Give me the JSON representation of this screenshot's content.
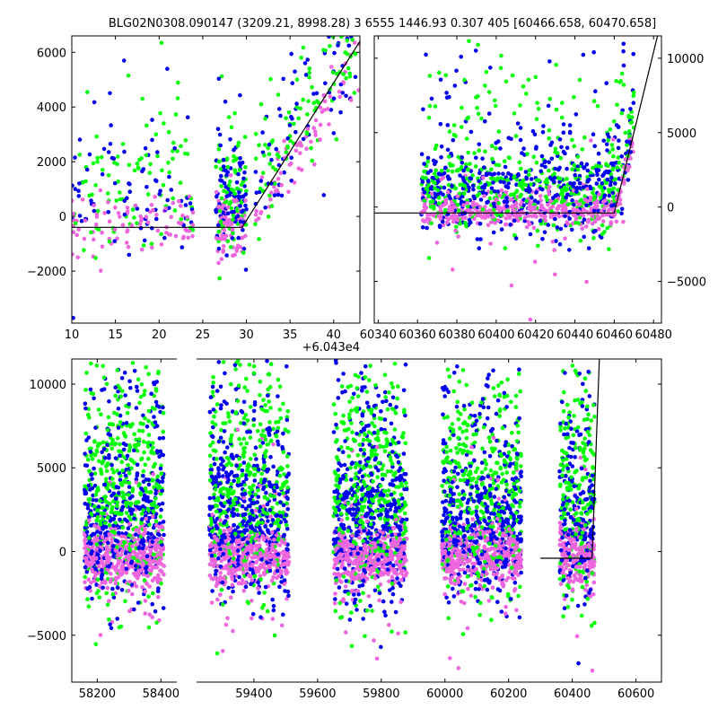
{
  "title": "BLG02N0308.090147 (3209.21, 8998.28)   3 6555 1446.93 0.307 405 [60466.658, 60470.658]",
  "colors": {
    "green": "#00ff00",
    "blue": "#0000ee",
    "magenta": "#ee66dd",
    "model": "#000000"
  },
  "chart_data": [
    {
      "type": "scatter",
      "panel": "top-left",
      "xlim": [
        10,
        43
      ],
      "ylim": [
        -3900,
        6600
      ],
      "xticks": [
        10,
        15,
        20,
        25,
        30,
        35,
        40
      ],
      "xtick_labels": [
        "10",
        "15",
        "20",
        "25",
        "30",
        "35",
        "40"
      ],
      "yticks": [
        -2000,
        0,
        2000,
        4000,
        6000
      ],
      "ytick_labels": [
        "−2000",
        "0",
        "2000",
        "4000",
        "6000"
      ],
      "y_axis_side": "left",
      "x_offset_label": "+6.043e4",
      "model_line": {
        "x": [
          10,
          29.5,
          43
        ],
        "y": [
          -400,
          -400,
          6400
        ]
      }
    },
    {
      "type": "scatter",
      "panel": "top-right",
      "xlim": [
        60338,
        60484
      ],
      "ylim": [
        -7800,
        11500
      ],
      "xticks": [
        60340,
        60360,
        60380,
        60400,
        60420,
        60440,
        60460,
        60480
      ],
      "xtick_labels": [
        "60340",
        "60360",
        "60380",
        "60400",
        "60420",
        "60440",
        "60460",
        "60480"
      ],
      "yticks": [
        -5000,
        0,
        5000,
        10000
      ],
      "ytick_labels": [
        "−5000",
        "0",
        "5000",
        "10000"
      ],
      "y_axis_side": "right",
      "model_line": {
        "x": [
          60338,
          60460,
          60482
        ],
        "y": [
          -400,
          -400,
          11500
        ]
      }
    },
    {
      "type": "scatter",
      "panel": "bottom",
      "xlim": [
        58120,
        60680
      ],
      "ylim": [
        -7800,
        11500
      ],
      "xticks": [
        58200,
        58400,
        59400,
        59600,
        59800,
        60000,
        60200,
        60400,
        60600
      ],
      "xtick_labels": [
        "58200",
        "58400",
        "59400",
        "59600",
        "59800",
        "60000",
        "60200",
        "60400",
        "60600"
      ],
      "yticks": [
        -5000,
        0,
        5000,
        10000
      ],
      "ytick_labels": [
        "−5000",
        "0",
        "5000",
        "10000"
      ],
      "y_axis_side": "both",
      "axis_break": [
        58450,
        59220
      ],
      "seasons": [
        [
          58160,
          58410
        ],
        [
          59260,
          59510
        ],
        [
          59650,
          59880
        ],
        [
          59990,
          60240
        ],
        [
          60360,
          60470
        ]
      ],
      "model_line": {
        "x": [
          60300,
          60462,
          60485
        ],
        "y": [
          -400,
          -400,
          11500
        ]
      }
    }
  ]
}
